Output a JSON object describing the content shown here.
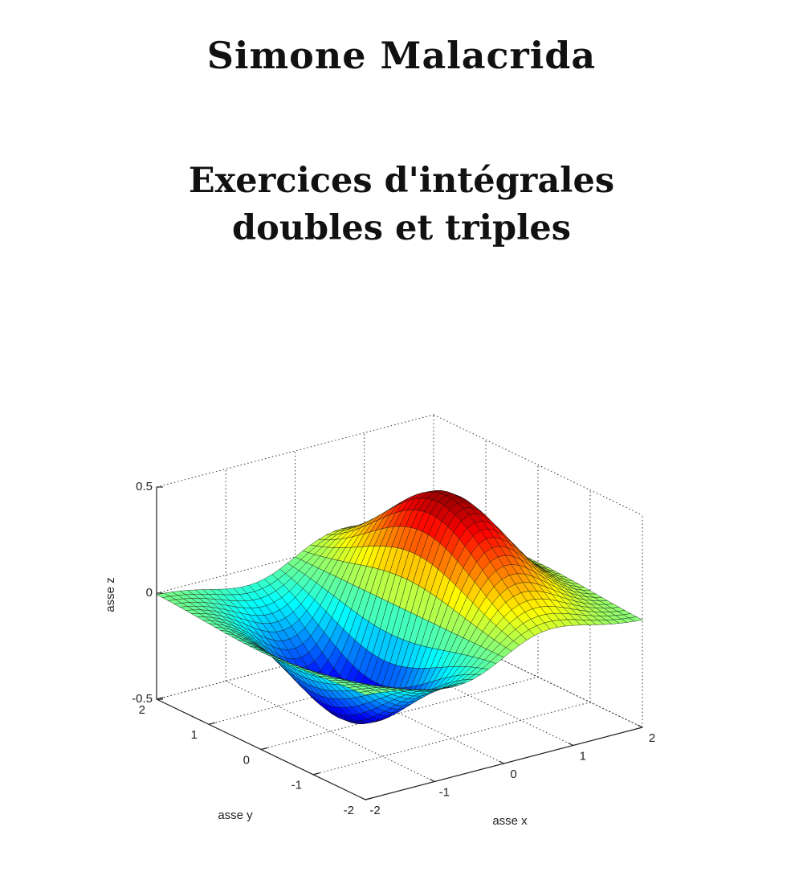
{
  "header": {
    "author": "Simone Malacrida",
    "title_lines": [
      "Exercices d'intégrales",
      "doubles et triples"
    ]
  },
  "figure": {
    "z_label": "asse z",
    "y_label": "asse y",
    "x_label": "asse x",
    "z_ticks": [
      "0.5",
      "0",
      "-0.5"
    ],
    "y_ticks": [
      "2",
      "1",
      "0",
      "-1",
      "-2"
    ],
    "x_ticks": [
      "-2",
      "-1",
      "0",
      "1",
      "2"
    ]
  }
}
